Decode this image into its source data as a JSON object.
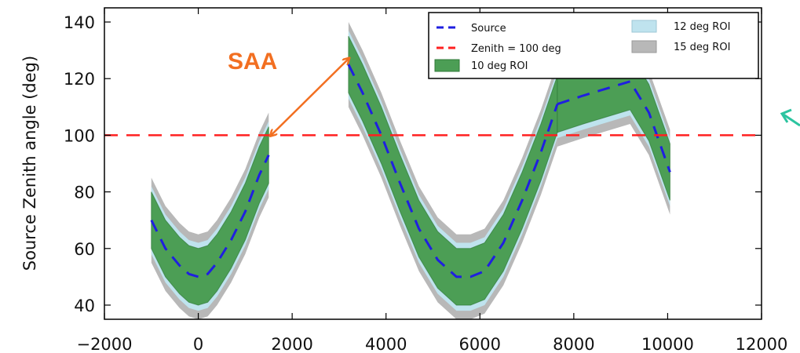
{
  "chart_data": {
    "type": "line",
    "title": "",
    "xlabel": "",
    "ylabel": "Source Zenith angle (deg)",
    "xlim": [
      -2000,
      12000
    ],
    "ylim": [
      35,
      145
    ],
    "xticks": [
      -2000,
      0,
      2000,
      4000,
      6000,
      8000,
      10000,
      12000
    ],
    "yticks": [
      40,
      60,
      80,
      100,
      120,
      140
    ],
    "x_tick_labels": [
      "−2000",
      "0",
      "2000",
      "4000",
      "6000",
      "8000",
      "10000",
      "12000"
    ],
    "y_tick_labels": [
      "40",
      "60",
      "80",
      "100",
      "120",
      "140"
    ],
    "legend": {
      "placement": "top-right",
      "entries": [
        "Source",
        "Zenith = 100 deg",
        "10 deg ROI",
        "12 deg ROI",
        "15 deg ROI"
      ]
    },
    "series": [
      {
        "name": "Source",
        "style": "dashed",
        "color": "#1f1fe0",
        "segments": [
          {
            "x": [
              -1000,
              -700,
              -400,
              -200,
              0,
              200,
              400,
              700,
              1000,
              1300,
              1500
            ],
            "y": [
              70,
              60,
              54,
              51,
              50,
              51,
              55,
              63,
              73,
              86,
              93
            ]
          },
          {
            "x": [
              3200,
              3500,
              3900,
              4300,
              4700,
              5100,
              5500,
              5800,
              6100,
              6500,
              6900,
              7300,
              7650
            ],
            "y": [
              125,
              115,
              100,
              83,
              67,
              56,
              50,
              50,
              52,
              62,
              77,
              94,
              111
            ]
          },
          {
            "x": [
              7650,
              8200,
              8800,
              9200,
              9600,
              10050
            ],
            "y": [
              111,
              114,
              117,
              119,
              108,
              87
            ]
          }
        ]
      },
      {
        "name": "Zenith = 100 deg",
        "style": "dashed",
        "color": "#ff2020",
        "x": [
          -2000,
          12000
        ],
        "y": [
          100,
          100
        ]
      }
    ],
    "bands": [
      {
        "name": "15 deg ROI",
        "color": "#b8b8b8",
        "half_width": 15
      },
      {
        "name": "12 deg ROI",
        "color": "#bfe3ee",
        "half_width": 12
      },
      {
        "name": "10 deg ROI",
        "color": "#4c9e55",
        "half_width": 10
      }
    ],
    "annotations": [
      {
        "text": "SAA",
        "color": "#f26f21",
        "arrow_from": [
          1550,
          100
        ],
        "arrow_to": [
          3200,
          127
        ]
      }
    ]
  }
}
